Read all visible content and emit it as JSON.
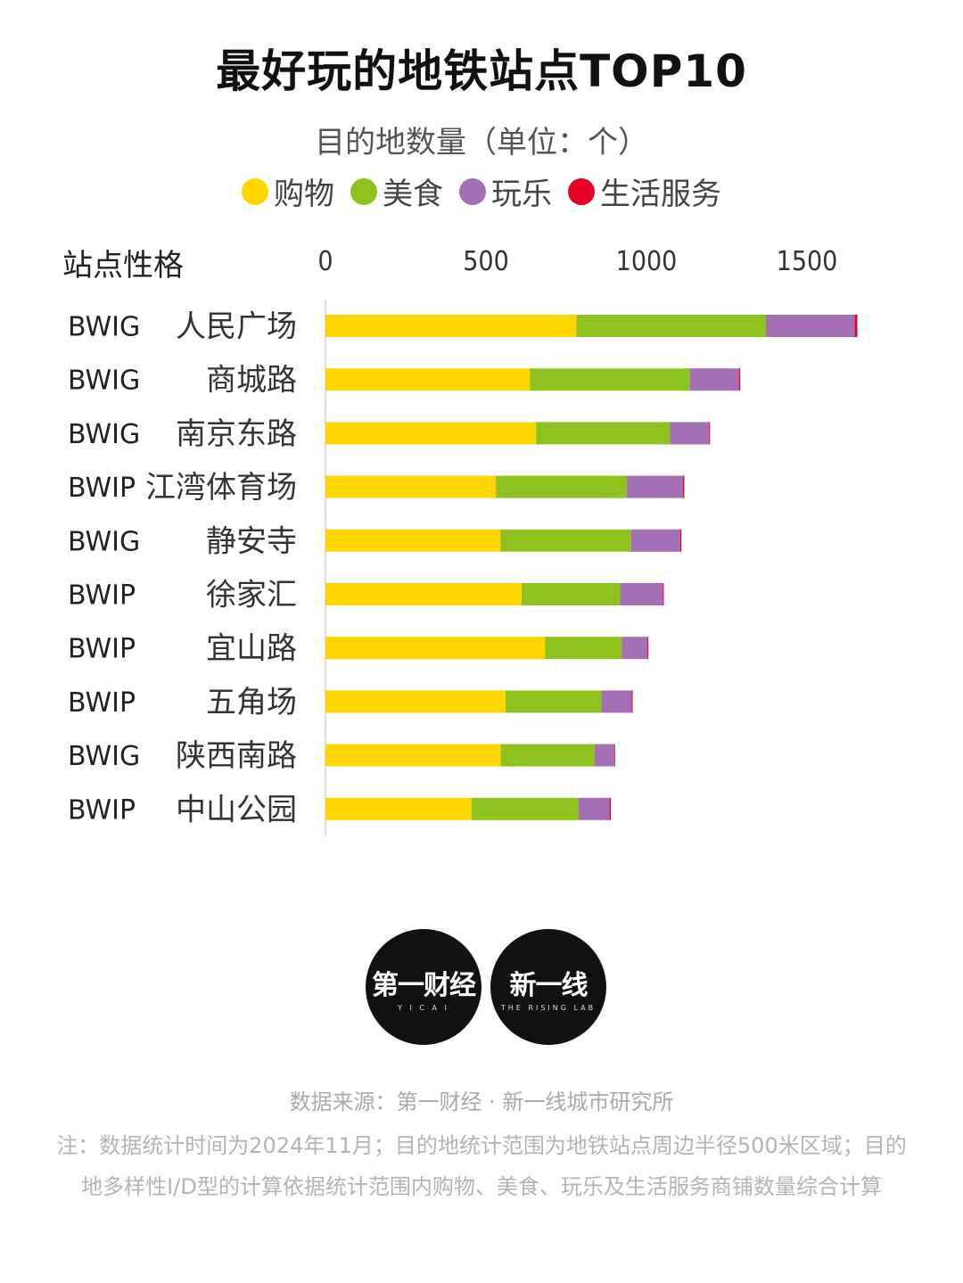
{
  "title": "最好玩的地铁站点TOP10",
  "subtitle": "目的地数量（单位：个）",
  "axis_title": "站点性格",
  "legend": [
    {
      "label": "购物",
      "color": "#FFD700"
    },
    {
      "label": "美食",
      "color": "#8DC21F"
    },
    {
      "label": "玩乐",
      "color": "#A56FB5"
    },
    {
      "label": "生活服务",
      "color": "#E60026"
    }
  ],
  "chart_data": {
    "type": "bar",
    "orientation": "horizontal",
    "stacked": true,
    "title": "最好玩的地铁站点TOP10",
    "subtitle": "目的地数量（单位：个）",
    "xlim": [
      0,
      1700
    ],
    "xticks": [
      0,
      500,
      1000,
      1500
    ],
    "xtick_labels": [
      "0",
      "500",
      "1000",
      "1500"
    ],
    "categories": [
      "人民广场",
      "商城路",
      "南京东路",
      "江湾体育场",
      "静安寺",
      "徐家汇",
      "宜山路",
      "五角场",
      "陕西南路",
      "中山公园"
    ],
    "types": [
      "BWIG",
      "BWIG",
      "BWIG",
      "BWIP",
      "BWIG",
      "BWIP",
      "BWIP",
      "BWIP",
      "BWIG",
      "BWIP"
    ],
    "series": [
      {
        "name": "购物",
        "color": "#FFD700",
        "values": [
          782,
          637,
          656,
          531,
          545,
          611,
          684,
          561,
          546,
          455
        ]
      },
      {
        "name": "美食",
        "color": "#8DC21F",
        "values": [
          590,
          498,
          417,
          408,
          407,
          307,
          239,
          299,
          293,
          334
        ]
      },
      {
        "name": "玩乐",
        "color": "#A56FB5",
        "values": [
          277,
          153,
          122,
          175,
          153,
          133,
          80,
          94,
          61,
          96
        ]
      },
      {
        "name": "生活服务",
        "color": "#E60026",
        "values": [
          8,
          4,
          3,
          4,
          4,
          3,
          3,
          3,
          2,
          4
        ]
      }
    ]
  },
  "logos": [
    {
      "main": "第一财经",
      "sub": "Y I C A I"
    },
    {
      "main": "新一线",
      "sub": "THE RISING LAB"
    }
  ],
  "source": "数据来源：第一财经 · 新一线城市研究所",
  "note": "注：数据统计时间为2024年11月；目的地统计范围为地铁站点周边半径500米区域；目的地多样性I/D型的计算依据统计范围内购物、美食、玩乐及生活服务商铺数量综合计算"
}
